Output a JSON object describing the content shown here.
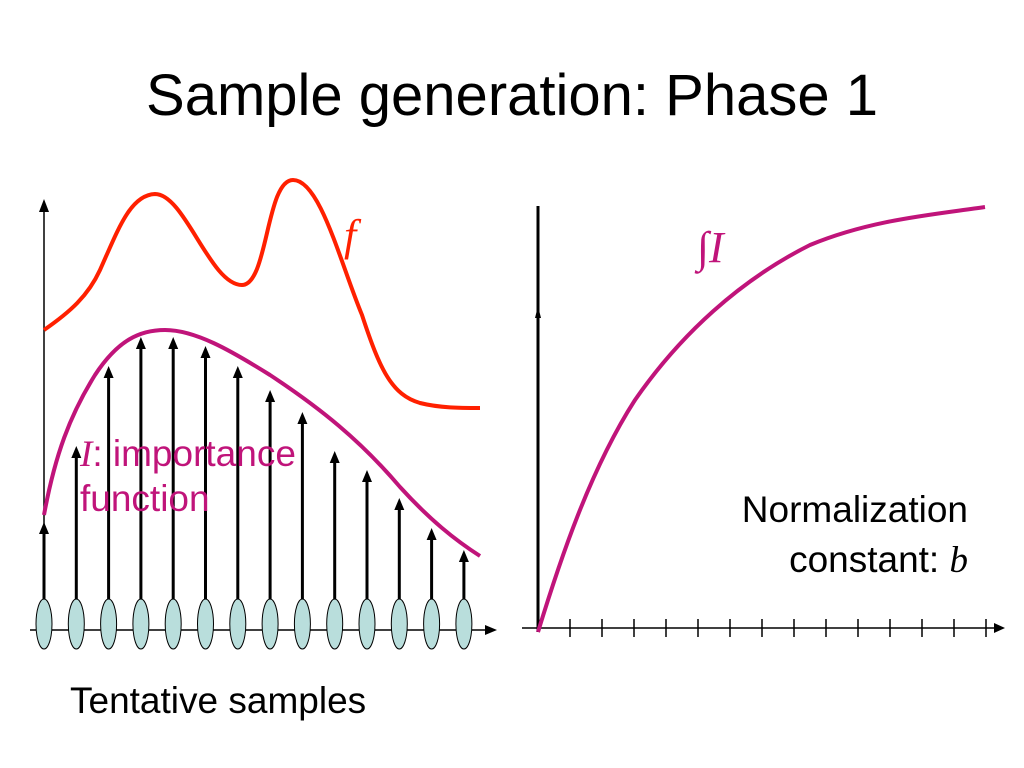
{
  "slide": {
    "title": "Sample generation: Phase 1"
  },
  "left_panel": {
    "f_label": "f",
    "importance_label": {
      "symbol": "I",
      "line1_rest": ": importance",
      "line2": "function"
    },
    "caption": "Tentative samples",
    "sample_count": 14
  },
  "right_panel": {
    "curve_label_symbol": "∫I",
    "caption_line1": "Normalization",
    "caption_line2_text": "constant: ",
    "caption_line2_symbol": "b",
    "tick_count": 14
  },
  "colors": {
    "f_curve": "#ff2000",
    "importance_curve": "#c0147a",
    "sample_fill": "#b9dedc",
    "axis": "#000000"
  }
}
